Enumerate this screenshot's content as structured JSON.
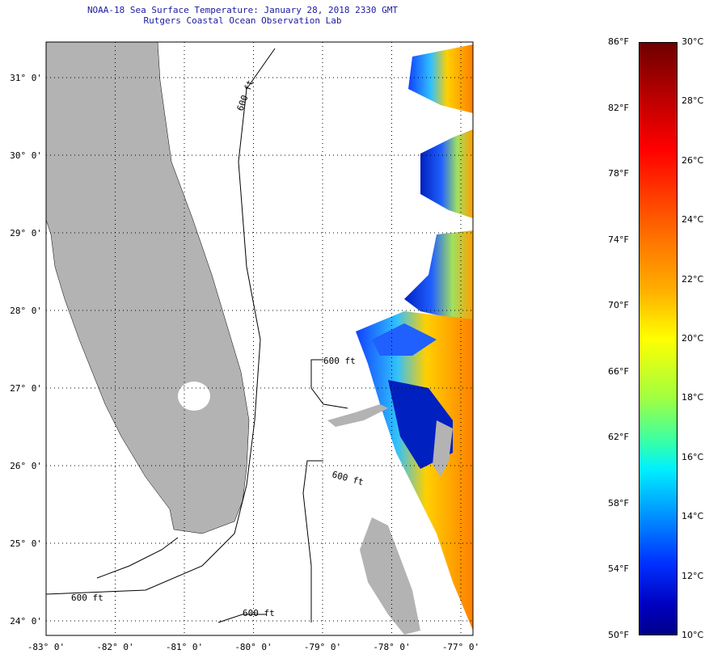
{
  "header": {
    "title": "NOAA-18 Sea Surface Temperature:  January 28, 2018 2330 GMT",
    "subtitle": "Rutgers Coastal Ocean Observation Lab"
  },
  "axes": {
    "lon_labels": [
      "-83° 0'",
      "-82° 0'",
      "-81° 0'",
      "-80° 0'",
      "-79° 0'",
      "-78° 0'",
      "-77° 0'"
    ],
    "lat_labels": [
      "31° 0'",
      "30° 0'",
      "29° 0'",
      "28° 0'",
      "27° 0'",
      "26° 0'",
      "25° 0'",
      "24° 0'"
    ]
  },
  "contours": {
    "label": "600 ft"
  },
  "colorbar": {
    "fahrenheit": [
      "86°F",
      "82°F",
      "78°F",
      "74°F",
      "70°F",
      "66°F",
      "62°F",
      "58°F",
      "54°F",
      "50°F"
    ],
    "celsius": [
      "30°C",
      "28°C",
      "26°C",
      "24°C",
      "22°C",
      "20°C",
      "18°C",
      "16°C",
      "14°C",
      "12°C",
      "10°C"
    ],
    "range_f": [
      50,
      86
    ],
    "range_c": [
      10,
      30
    ]
  },
  "colors": {
    "land": "#b3b3b3",
    "title": "#1a1aa0"
  }
}
